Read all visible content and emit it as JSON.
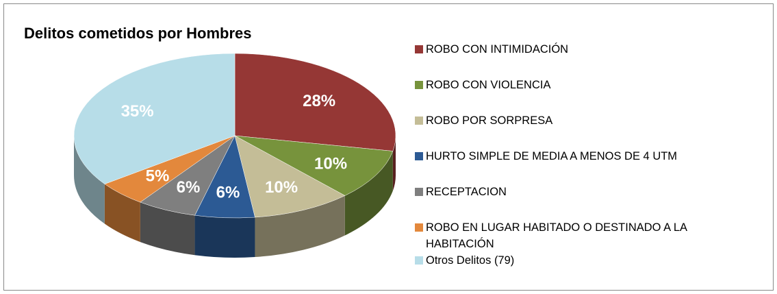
{
  "chart_data": {
    "type": "pie",
    "title": "Delitos cometidos por Hombres",
    "categories": [
      "ROBO CON INTIMIDACIÓN",
      "ROBO CON VIOLENCIA",
      "ROBO POR SORPRESA",
      "HURTO SIMPLE DE MEDIA A MENOS DE 4 UTM",
      "RECEPTACION",
      "ROBO EN LUGAR HABITADO O DESTINADO A LA HABITACIÓN",
      "Otros Delitos (79)"
    ],
    "values": [
      28,
      10,
      10,
      6,
      6,
      5,
      35
    ],
    "value_labels": [
      "28%",
      "10%",
      "10%",
      "6%",
      "6%",
      "5%",
      "35%"
    ],
    "colors": [
      "#953735",
      "#77933c",
      "#c4bd97",
      "#2c5a94",
      "#7f7f7f",
      "#e3883c",
      "#b7dde8"
    ],
    "legend": "right"
  }
}
